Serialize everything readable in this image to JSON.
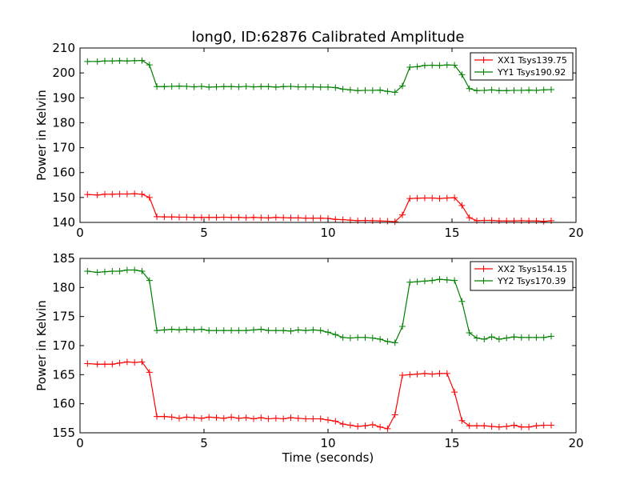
{
  "chart_data": [
    {
      "type": "line",
      "title": "long0, ID:62876 Calibrated Amplitude",
      "xlabel": "",
      "ylabel": "Power in Kelvin",
      "xlim": [
        0,
        20
      ],
      "ylim": [
        140,
        210
      ],
      "xticks": [
        0,
        5,
        10,
        15,
        20
      ],
      "yticks": [
        140,
        150,
        160,
        170,
        180,
        190,
        200,
        210
      ],
      "legend_position": "top-right",
      "grid": false,
      "x": [
        0.3,
        0.7,
        1.0,
        1.3,
        1.6,
        1.9,
        2.2,
        2.5,
        2.8,
        3.1,
        3.4,
        3.7,
        4.0,
        4.3,
        4.6,
        4.9,
        5.2,
        5.5,
        5.8,
        6.1,
        6.4,
        6.7,
        7.0,
        7.3,
        7.6,
        7.9,
        8.2,
        8.5,
        8.8,
        9.1,
        9.4,
        9.7,
        10.0,
        10.3,
        10.6,
        10.9,
        11.2,
        11.5,
        11.8,
        12.1,
        12.4,
        12.7,
        13.0,
        13.3,
        13.6,
        13.9,
        14.2,
        14.5,
        14.8,
        15.1,
        15.4,
        15.7,
        16.0,
        16.3,
        16.6,
        16.9,
        17.2,
        17.5,
        17.8,
        18.1,
        18.4,
        18.7,
        19.0
      ],
      "series": [
        {
          "name": "XX1 Tsys139.75",
          "color": "#ff0000",
          "values": [
            151.2,
            151.0,
            151.3,
            151.3,
            151.4,
            151.4,
            151.5,
            151.3,
            150.0,
            142.3,
            142.2,
            142.2,
            142.1,
            142.1,
            142.0,
            142.0,
            142.0,
            142.0,
            142.1,
            142.0,
            142.0,
            141.9,
            142.0,
            141.9,
            141.8,
            142.0,
            141.9,
            141.8,
            141.8,
            141.7,
            141.7,
            141.7,
            141.6,
            141.2,
            141.1,
            140.9,
            140.7,
            140.8,
            140.7,
            140.6,
            140.5,
            140.3,
            143.0,
            149.6,
            149.7,
            149.8,
            149.8,
            149.6,
            149.8,
            149.9,
            146.8,
            141.9,
            140.7,
            140.8,
            140.8,
            140.6,
            140.6,
            140.6,
            140.7,
            140.6,
            140.6,
            140.4,
            140.7
          ]
        },
        {
          "name": "YY1 Tsys190.92",
          "color": "#008000",
          "values": [
            204.6,
            204.6,
            204.8,
            204.8,
            204.9,
            204.8,
            204.9,
            205.0,
            203.2,
            194.5,
            194.5,
            194.6,
            194.7,
            194.6,
            194.4,
            194.6,
            194.3,
            194.4,
            194.5,
            194.5,
            194.4,
            194.6,
            194.4,
            194.5,
            194.5,
            194.3,
            194.5,
            194.6,
            194.4,
            194.4,
            194.4,
            194.3,
            194.3,
            194.1,
            193.5,
            193.2,
            192.9,
            193.0,
            193.0,
            193.1,
            192.6,
            192.2,
            194.8,
            202.3,
            202.5,
            203.0,
            203.1,
            203.0,
            203.2,
            203.1,
            199.3,
            193.7,
            192.9,
            193.0,
            193.2,
            192.9,
            192.9,
            193.0,
            193.0,
            193.1,
            193.0,
            193.2,
            193.3
          ]
        }
      ]
    },
    {
      "type": "line",
      "title": "",
      "xlabel": "Time (seconds)",
      "ylabel": "Power in Kelvin",
      "xlim": [
        0,
        20
      ],
      "ylim": [
        155,
        185
      ],
      "xticks": [
        0,
        5,
        10,
        15,
        20
      ],
      "yticks": [
        155,
        160,
        165,
        170,
        175,
        180,
        185
      ],
      "legend_position": "top-right",
      "grid": false,
      "x": [
        0.3,
        0.7,
        1.0,
        1.3,
        1.6,
        1.9,
        2.2,
        2.5,
        2.8,
        3.1,
        3.4,
        3.7,
        4.0,
        4.3,
        4.6,
        4.9,
        5.2,
        5.5,
        5.8,
        6.1,
        6.4,
        6.7,
        7.0,
        7.3,
        7.6,
        7.9,
        8.2,
        8.5,
        8.8,
        9.1,
        9.4,
        9.7,
        10.0,
        10.3,
        10.6,
        10.9,
        11.2,
        11.5,
        11.8,
        12.1,
        12.4,
        12.7,
        13.0,
        13.3,
        13.6,
        13.9,
        14.2,
        14.5,
        14.8,
        15.1,
        15.4,
        15.7,
        16.0,
        16.3,
        16.6,
        16.9,
        17.2,
        17.5,
        17.8,
        18.1,
        18.4,
        18.7,
        19.0
      ],
      "series": [
        {
          "name": "XX2 Tsys154.15",
          "color": "#ff0000",
          "values": [
            166.9,
            166.8,
            166.8,
            166.8,
            167.0,
            167.2,
            167.1,
            167.2,
            165.4,
            157.8,
            157.8,
            157.7,
            157.5,
            157.7,
            157.6,
            157.5,
            157.7,
            157.6,
            157.5,
            157.7,
            157.5,
            157.6,
            157.4,
            157.6,
            157.4,
            157.5,
            157.4,
            157.6,
            157.5,
            157.4,
            157.4,
            157.4,
            157.2,
            157.0,
            156.5,
            156.3,
            156.1,
            156.2,
            156.4,
            156.0,
            155.7,
            158.1,
            164.9,
            165.0,
            165.1,
            165.2,
            165.1,
            165.2,
            165.2,
            162.0,
            157.1,
            156.2,
            156.2,
            156.2,
            156.1,
            156.0,
            156.1,
            156.3,
            156.0,
            156.0,
            156.2,
            156.3,
            156.3
          ]
        },
        {
          "name": "YY2 Tsys170.39",
          "color": "#008000",
          "values": [
            182.8,
            182.6,
            182.7,
            182.8,
            182.8,
            183.0,
            183.0,
            182.8,
            181.2,
            172.6,
            172.7,
            172.8,
            172.7,
            172.8,
            172.7,
            172.8,
            172.6,
            172.6,
            172.6,
            172.6,
            172.6,
            172.6,
            172.7,
            172.8,
            172.6,
            172.6,
            172.6,
            172.5,
            172.7,
            172.6,
            172.7,
            172.6,
            172.3,
            171.9,
            171.4,
            171.3,
            171.4,
            171.4,
            171.3,
            171.1,
            170.7,
            170.5,
            173.3,
            180.9,
            181.0,
            181.1,
            181.2,
            181.4,
            181.3,
            181.2,
            177.6,
            172.2,
            171.3,
            171.1,
            171.5,
            171.1,
            171.3,
            171.5,
            171.4,
            171.4,
            171.4,
            171.4,
            171.6
          ]
        }
      ]
    }
  ]
}
